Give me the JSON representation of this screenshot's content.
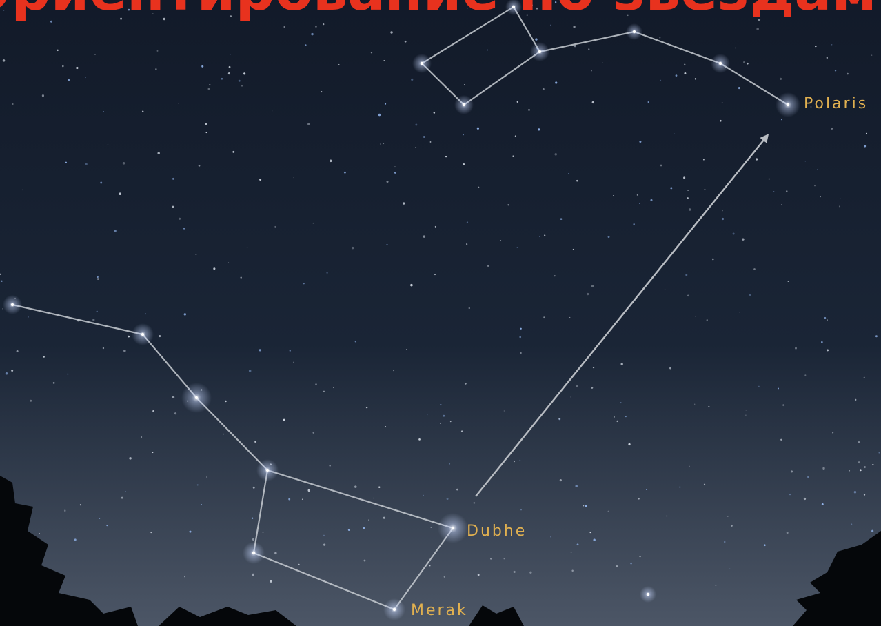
{
  "header": {
    "title": "Ориентирование по звездам"
  },
  "labels": {
    "polaris": "Polaris",
    "dubhe": "Dubhe",
    "merak": "Merak"
  }
}
